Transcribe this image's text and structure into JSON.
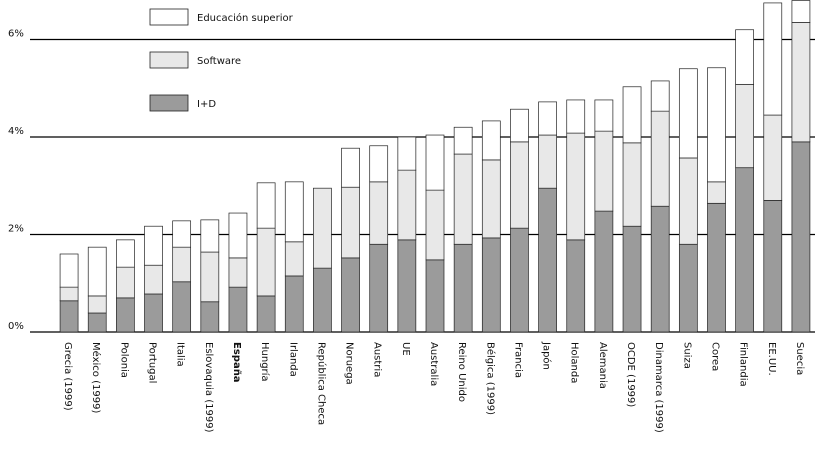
{
  "chart_data": {
    "type": "stacked_bar",
    "categories": [
      "Grecia (1999)",
      "México (1999)",
      "Polonia",
      "Portugal",
      "Italia",
      "Eslovaquia (1999)",
      "España",
      "Hungría",
      "Irlanda",
      "República Checa",
      "Noruega",
      "Austria",
      "UE",
      "Australia",
      "Reino Unido",
      "Bélgica (1999)",
      "Francia",
      "Japón",
      "Holanda",
      "Alemania",
      "OCDE (1999)",
      "Dinamarca (1999)",
      "Suiza",
      "Corea",
      "Finlandia",
      "EE.UU.",
      "Suecia"
    ],
    "highlight_category": "España",
    "series": [
      {
        "name": "I+D",
        "color": "#9b9b9b",
        "values": [
          0.64,
          0.39,
          0.7,
          0.78,
          1.03,
          0.62,
          0.92,
          0.74,
          1.15,
          1.31,
          1.52,
          1.8,
          1.89,
          1.48,
          1.8,
          1.93,
          2.13,
          2.95,
          1.89,
          2.48,
          2.17,
          2.58,
          1.8,
          2.64,
          3.37,
          2.7,
          3.9
        ]
      },
      {
        "name": "Software",
        "color": "#e8e8e8",
        "values": [
          0.28,
          0.35,
          0.63,
          0.59,
          0.71,
          1.02,
          0.6,
          1.39,
          0.7,
          1.64,
          1.45,
          1.28,
          1.43,
          1.43,
          1.85,
          1.6,
          1.77,
          1.09,
          2.19,
          1.64,
          1.71,
          1.95,
          1.77,
          0.44,
          1.71,
          1.75,
          2.45
        ]
      },
      {
        "name": "Educación superior",
        "color": "#ffffff",
        "values": [
          0.68,
          1.0,
          0.56,
          0.8,
          0.54,
          0.66,
          0.92,
          0.93,
          1.23,
          0,
          0.8,
          0.74,
          0.68,
          1.13,
          0.55,
          0.8,
          0.67,
          0.68,
          0.68,
          0.64,
          1.15,
          0.62,
          1.83,
          2.34,
          1.12,
          2.3,
          0.45
        ]
      }
    ],
    "ylim": [
      0,
      6.81
    ],
    "yticks": [
      {
        "value": 0,
        "label": "0%"
      },
      {
        "value": 2,
        "label": "2%"
      },
      {
        "value": 4,
        "label": "4%"
      },
      {
        "value": 6,
        "label": "6%"
      }
    ],
    "grid": true,
    "legend": "upper left"
  }
}
